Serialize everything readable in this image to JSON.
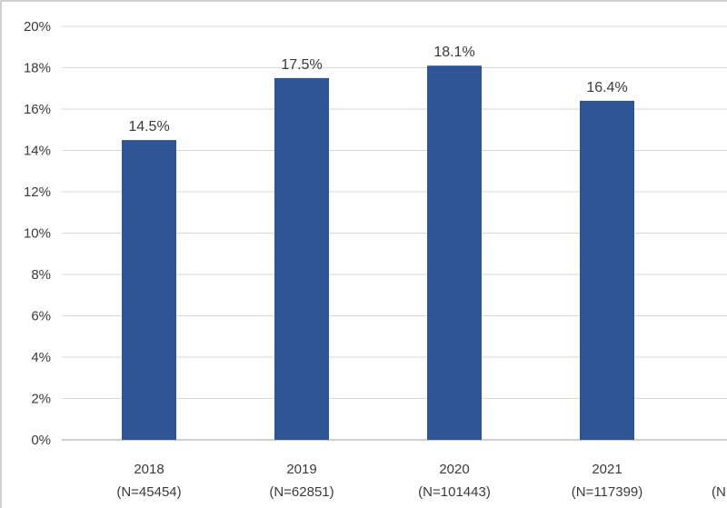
{
  "chart_data": {
    "type": "bar",
    "title": "",
    "xlabel": "",
    "ylabel": "",
    "categories": [
      "2018",
      "2019",
      "2020",
      "2021",
      ""
    ],
    "category_sublabels": [
      "(N=45454)",
      "(N=62851)",
      "(N=101443)",
      "(N=117399)",
      "(N"
    ],
    "values": [
      14.5,
      17.5,
      18.1,
      16.4,
      null
    ],
    "data_labels": [
      "14.5%",
      "17.5%",
      "18.1%",
      "16.4%",
      ""
    ],
    "ylim": [
      0,
      20
    ],
    "yticks": [
      0,
      2,
      4,
      6,
      8,
      10,
      12,
      14,
      16,
      18,
      20
    ],
    "ytick_labels": [
      "0%",
      "2%",
      "4%",
      "6%",
      "8%",
      "10%",
      "12%",
      "14%",
      "16%",
      "18%",
      "20%"
    ],
    "grid": true,
    "legend": "none",
    "bar_color": "#2F5597",
    "grid_color": "#d9d9d9"
  }
}
